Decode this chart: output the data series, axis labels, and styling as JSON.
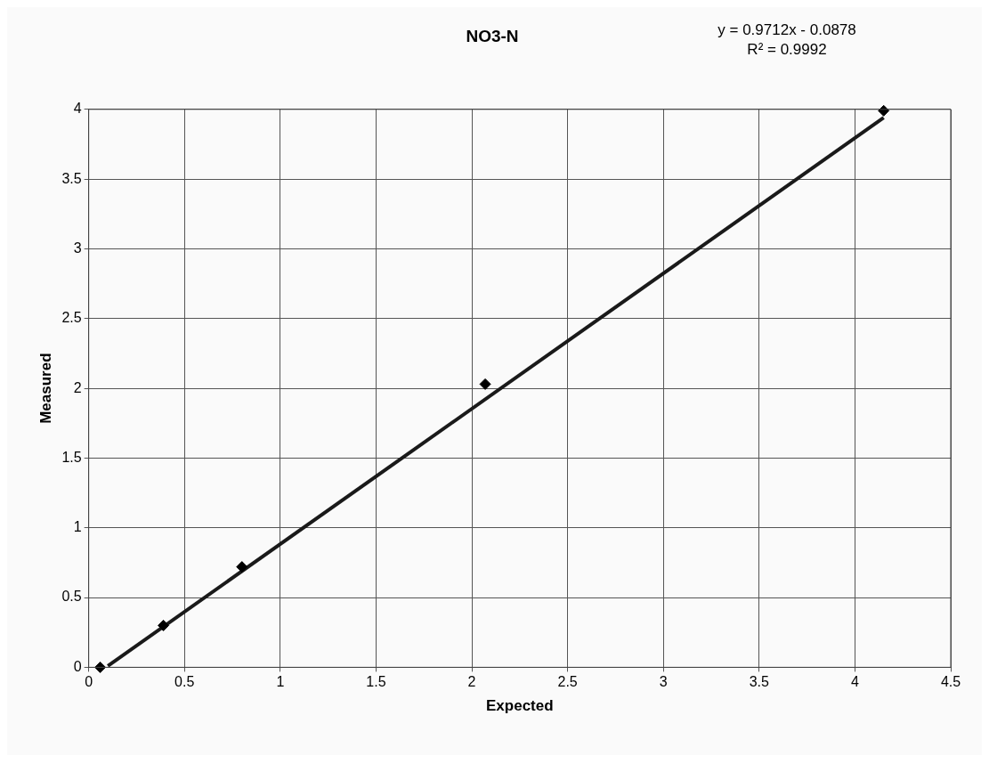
{
  "chart_data": {
    "type": "scatter",
    "title": "NO3-N",
    "xlabel": "Expected",
    "ylabel": "Measured",
    "annotations": [
      "y = 0.9712x - 0.0878",
      "R² = 0.9992"
    ],
    "series": [
      {
        "type": "scatter",
        "x": [
          0.06,
          0.39,
          0.8,
          2.07,
          4.15
        ],
        "values": [
          0,
          0.3,
          0.72,
          2.03,
          3.99
        ],
        "color": "#000000",
        "marker": "diamond"
      },
      {
        "type": "line",
        "x": [
          0.1,
          4.15
        ],
        "values": [
          0.01,
          3.94
        ],
        "color": "#1a1a1a",
        "marker": "none",
        "line_style": "solid"
      }
    ],
    "xlim": [
      0,
      4.5
    ],
    "xticks": [
      0,
      0.5,
      1,
      1.5,
      2,
      2.5,
      3,
      3.5,
      4,
      4.5
    ],
    "ylim": [
      0,
      4
    ],
    "yticks": [
      0,
      0.5,
      1,
      1.5,
      2,
      2.5,
      3,
      3.5,
      4
    ],
    "grid": true,
    "legend": false
  }
}
